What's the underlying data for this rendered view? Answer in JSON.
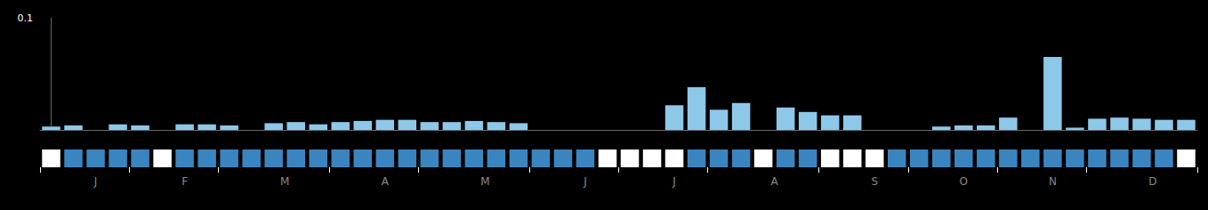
{
  "chart_data": {
    "type": "bar",
    "x": [
      0,
      1,
      2,
      3,
      4,
      5,
      6,
      7,
      8,
      9,
      10,
      11,
      12,
      13,
      14,
      15,
      16,
      17,
      18,
      19,
      20,
      21,
      22,
      23,
      24,
      25,
      26,
      27,
      28,
      29,
      30,
      31,
      32,
      33,
      34,
      35,
      36,
      37,
      38,
      39,
      40,
      41,
      42,
      43,
      44,
      45,
      46,
      47,
      48,
      49,
      50,
      51
    ],
    "values": [
      0.003,
      0.004,
      0.0,
      0.005,
      0.004,
      0.0,
      0.005,
      0.005,
      0.004,
      0.0,
      0.006,
      0.007,
      0.005,
      0.007,
      0.008,
      0.009,
      0.009,
      0.007,
      0.007,
      0.008,
      0.007,
      0.006,
      0.0,
      0.0,
      0.0,
      0.0,
      0.0,
      0.0,
      0.022,
      0.038,
      0.018,
      0.024,
      0.0,
      0.02,
      0.016,
      0.013,
      0.013,
      0.0,
      0.0,
      0.0,
      0.003,
      0.004,
      0.004,
      0.011,
      0.0,
      0.065,
      0.002,
      0.01,
      0.011,
      0.01,
      0.009,
      0.009
    ],
    "color": "#8dc8e8",
    "xlim": [
      -0.5,
      51.5
    ],
    "xticks": [
      {
        "value": 2.0,
        "label": "J"
      },
      {
        "value": 6.0,
        "label": "F"
      },
      {
        "value": 10.5,
        "label": "M"
      },
      {
        "value": 15.0,
        "label": "A"
      },
      {
        "value": 19.5,
        "label": "M"
      },
      {
        "value": 24.0,
        "label": "J"
      },
      {
        "value": 28.0,
        "label": "J"
      },
      {
        "value": 32.5,
        "label": "A"
      },
      {
        "value": 37.0,
        "label": "S"
      },
      {
        "value": 41.0,
        "label": "O"
      },
      {
        "value": 45.0,
        "label": "N"
      },
      {
        "value": 49.5,
        "label": "D"
      }
    ],
    "ylim": [
      0,
      0.1
    ],
    "yticks": [
      0.1
    ],
    "grid": false,
    "indicator_colors": [
      "#ffffff",
      "#3a85c0",
      "#3a85c0",
      "#3a85c0",
      "#3a85c0",
      "#ffffff",
      "#3a85c0",
      "#3a85c0",
      "#3a85c0",
      "#3a85c0",
      "#3a85c0",
      "#3a85c0",
      "#3a85c0",
      "#3a85c0",
      "#3a85c0",
      "#3a85c0",
      "#3a85c0",
      "#3a85c0",
      "#3a85c0",
      "#3a85c0",
      "#3a85c0",
      "#3a85c0",
      "#3a85c0",
      "#3a85c0",
      "#3a85c0",
      "#ffffff",
      "#ffffff",
      "#ffffff",
      "#ffffff",
      "#3a85c0",
      "#3a85c0",
      "#3a85c0",
      "#ffffff",
      "#3a85c0",
      "#3a85c0",
      "#ffffff",
      "#ffffff",
      "#ffffff",
      "#3a85c0",
      "#3a85c0",
      "#3a85c0",
      "#3a85c0",
      "#3a85c0",
      "#3a85c0",
      "#3a85c0",
      "#3a85c0",
      "#3a85c0",
      "#3a85c0",
      "#3a85c0",
      "#3a85c0",
      "#3a85c0",
      "#ffffff"
    ],
    "month_dividers": [
      -0.5,
      3.5,
      7.5,
      12.5,
      16.5,
      21.5,
      25.5,
      29.5,
      34.5,
      38.5,
      42.5,
      46.5,
      51.5
    ]
  }
}
